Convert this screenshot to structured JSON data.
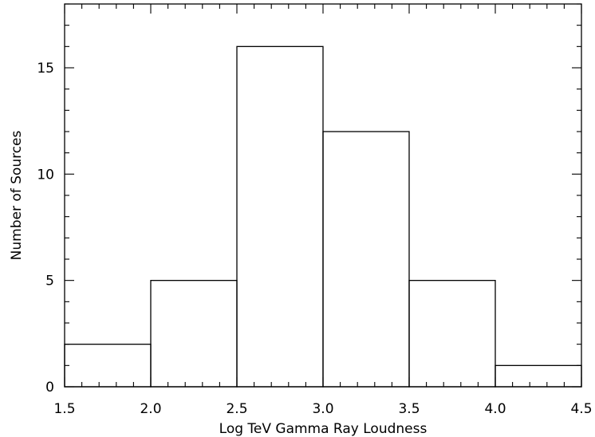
{
  "chart_data": {
    "type": "bar",
    "xlabel": "Log TeV Gamma Ray Loudness",
    "ylabel": "Number of Sources",
    "xlim": [
      1.5,
      4.5
    ],
    "ylim": [
      0,
      18
    ],
    "xticks": [
      "1.5",
      "2.0",
      "2.5",
      "3.0",
      "3.5",
      "4.0",
      "4.5"
    ],
    "yticks": [
      "0",
      "5",
      "10",
      "15"
    ],
    "bins": [
      {
        "x0": 1.5,
        "x1": 2.0,
        "count": 2
      },
      {
        "x0": 2.0,
        "x1": 2.5,
        "count": 5
      },
      {
        "x0": 2.5,
        "x1": 3.0,
        "count": 16
      },
      {
        "x0": 3.0,
        "x1": 3.5,
        "count": 12
      },
      {
        "x0": 3.5,
        "x1": 4.0,
        "count": 5
      },
      {
        "x0": 4.0,
        "x1": 4.5,
        "count": 1
      }
    ],
    "grid": false
  }
}
